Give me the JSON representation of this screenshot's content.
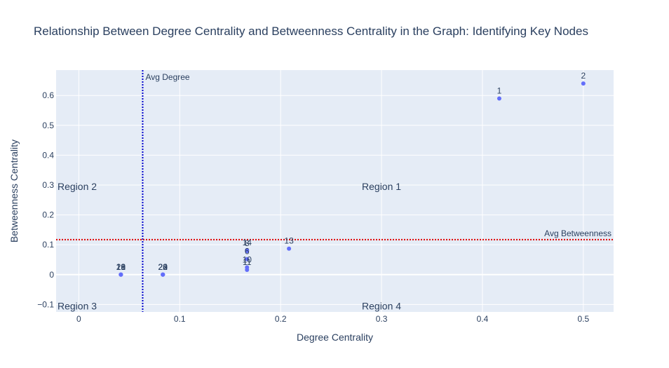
{
  "chart_data": {
    "type": "scatter",
    "title": "Relationship Between Degree Centrality and Betweenness Centrality in the Graph: Identifying Key Nodes",
    "xlabel": "Degree Centrality",
    "ylabel": "Betweenness Centrality",
    "xlim": [
      -0.0225,
      0.53
    ],
    "ylim": [
      -0.125,
      0.685
    ],
    "x_ticks": [
      0,
      0.1,
      0.2,
      0.3,
      0.4,
      0.5
    ],
    "x_tick_labels": [
      "0",
      "0.1",
      "0.2",
      "0.3",
      "0.4",
      "0.5"
    ],
    "y_ticks": [
      -0.1,
      0,
      0.1,
      0.2,
      0.3,
      0.4,
      0.5,
      0.6
    ],
    "y_tick_labels": [
      "−0.1",
      "0",
      "0.1",
      "0.2",
      "0.3",
      "0.4",
      "0.5",
      "0.6"
    ],
    "grid": true,
    "marker_color": "#636efa",
    "points": [
      {
        "label": "1",
        "x": 0.4167,
        "y": 0.59
      },
      {
        "label": "2",
        "x": 0.5,
        "y": 0.64
      },
      {
        "label": "13",
        "x": 0.2083,
        "y": 0.087
      },
      {
        "label": "14",
        "x": 0.1667,
        "y": 0.082
      },
      {
        "label": "8",
        "x": 0.1667,
        "y": 0.079
      },
      {
        "label": "6",
        "x": 0.1667,
        "y": 0.052
      },
      {
        "label": "10",
        "x": 0.1667,
        "y": 0.024
      },
      {
        "label": "11",
        "x": 0.1667,
        "y": 0.016
      },
      {
        "label": "22",
        "x": 0.0833,
        "y": 0.0
      },
      {
        "label": "23",
        "x": 0.0833,
        "y": 0.0
      },
      {
        "label": "20",
        "x": 0.0833,
        "y": 0.0
      },
      {
        "label": "24",
        "x": 0.0833,
        "y": 0.0
      },
      {
        "label": "21",
        "x": 0.0417,
        "y": 0.0
      },
      {
        "label": "16",
        "x": 0.0417,
        "y": 0.0
      },
      {
        "label": "18",
        "x": 0.0417,
        "y": 0.0
      },
      {
        "label": "19",
        "x": 0.0417,
        "y": 0.0
      }
    ],
    "reference_lines": [
      {
        "orientation": "vertical",
        "value": 0.0633,
        "label": "Avg Degree",
        "color": "#0000cd"
      },
      {
        "orientation": "horizontal",
        "value": 0.117,
        "label": "Avg Betweenness",
        "color": "#e00000"
      }
    ],
    "regions": [
      {
        "label": "Region 1",
        "x": 0.3,
        "y": 0.295
      },
      {
        "label": "Region 2",
        "x": 0.0,
        "y": 0.295
      },
      {
        "label": "Region 3",
        "x": 0.0,
        "y": -0.105
      },
      {
        "label": "Region 4",
        "x": 0.3,
        "y": -0.105
      }
    ]
  }
}
